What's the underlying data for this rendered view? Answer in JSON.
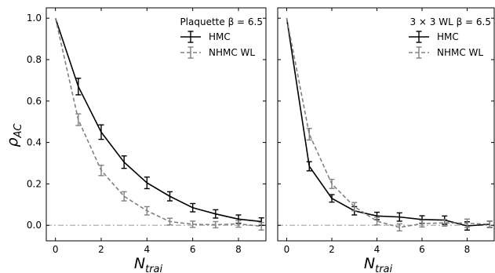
{
  "chart_data": [
    {
      "type": "line",
      "title": "Plaquette β = 6.5",
      "xlabel": "N",
      "xlabel_sub": "trai",
      "ylabel": "ρ",
      "ylabel_sub": "AC",
      "xlim": [
        -0.4,
        9.2
      ],
      "ylim": [
        -0.075,
        1.05
      ],
      "xticks": [
        0,
        2,
        4,
        6,
        8
      ],
      "yticks": [
        0.0,
        0.2,
        0.4,
        0.6,
        0.8,
        1.0
      ],
      "ytick_labels": [
        "0.0",
        "0.2",
        "0.4",
        "0.6",
        "0.8",
        "1.0"
      ],
      "show_yticklabels": true,
      "reference_line": 0.0,
      "legend_position": "top-right",
      "series": [
        {
          "name": "HMC",
          "color": "#000000",
          "style": "solid",
          "x": [
            0,
            1,
            2,
            3,
            4,
            5,
            6,
            7,
            8,
            9
          ],
          "y": [
            1.0,
            0.67,
            0.45,
            0.305,
            0.205,
            0.14,
            0.085,
            0.055,
            0.03,
            0.018
          ],
          "err": [
            0.0,
            0.04,
            0.035,
            0.03,
            0.028,
            0.022,
            0.02,
            0.02,
            0.02,
            0.018
          ]
        },
        {
          "name": "NHMC WL",
          "color": "#808080",
          "style": "dashed",
          "x": [
            0,
            1,
            2,
            3,
            4,
            5,
            6,
            7,
            8,
            9
          ],
          "y": [
            1.0,
            0.51,
            0.265,
            0.14,
            0.07,
            0.018,
            0.005,
            0.003,
            0.007,
            -0.005
          ],
          "err": [
            0.0,
            0.028,
            0.025,
            0.022,
            0.02,
            0.016,
            0.015,
            0.015,
            0.016,
            0.018
          ]
        }
      ]
    },
    {
      "type": "line",
      "title": "3 × 3 WL β = 6.5",
      "xlabel": "N",
      "xlabel_sub": "trai",
      "ylabel": "",
      "ylabel_sub": "",
      "xlim": [
        -0.4,
        9.2
      ],
      "ylim": [
        -0.075,
        1.05
      ],
      "xticks": [
        0,
        2,
        4,
        6,
        8
      ],
      "yticks": [
        0.0,
        0.2,
        0.4,
        0.6,
        0.8,
        1.0
      ],
      "ytick_labels": [
        "",
        "",
        "",
        "",
        "",
        ""
      ],
      "show_yticklabels": false,
      "reference_line": 0.0,
      "legend_position": "top-right",
      "series": [
        {
          "name": "HMC",
          "color": "#000000",
          "style": "solid",
          "x": [
            0,
            1,
            2,
            3,
            4,
            5,
            6,
            7,
            8,
            9
          ],
          "y": [
            1.0,
            0.285,
            0.13,
            0.07,
            0.045,
            0.04,
            0.028,
            0.025,
            -0.003,
            0.005
          ],
          "err": [
            0.0,
            0.022,
            0.018,
            0.02,
            0.018,
            0.02,
            0.018,
            0.02,
            0.02,
            0.015
          ]
        },
        {
          "name": "NHMC WL",
          "color": "#808080",
          "style": "dashed",
          "x": [
            0,
            1,
            2,
            3,
            4,
            5,
            6,
            7,
            8,
            9
          ],
          "y": [
            1.0,
            0.44,
            0.2,
            0.09,
            0.02,
            -0.01,
            0.008,
            0.012,
            0.01,
            0.005
          ],
          "err": [
            0.0,
            0.028,
            0.022,
            0.02,
            0.018,
            0.017,
            0.016,
            0.016,
            0.02,
            0.016
          ]
        }
      ]
    }
  ]
}
